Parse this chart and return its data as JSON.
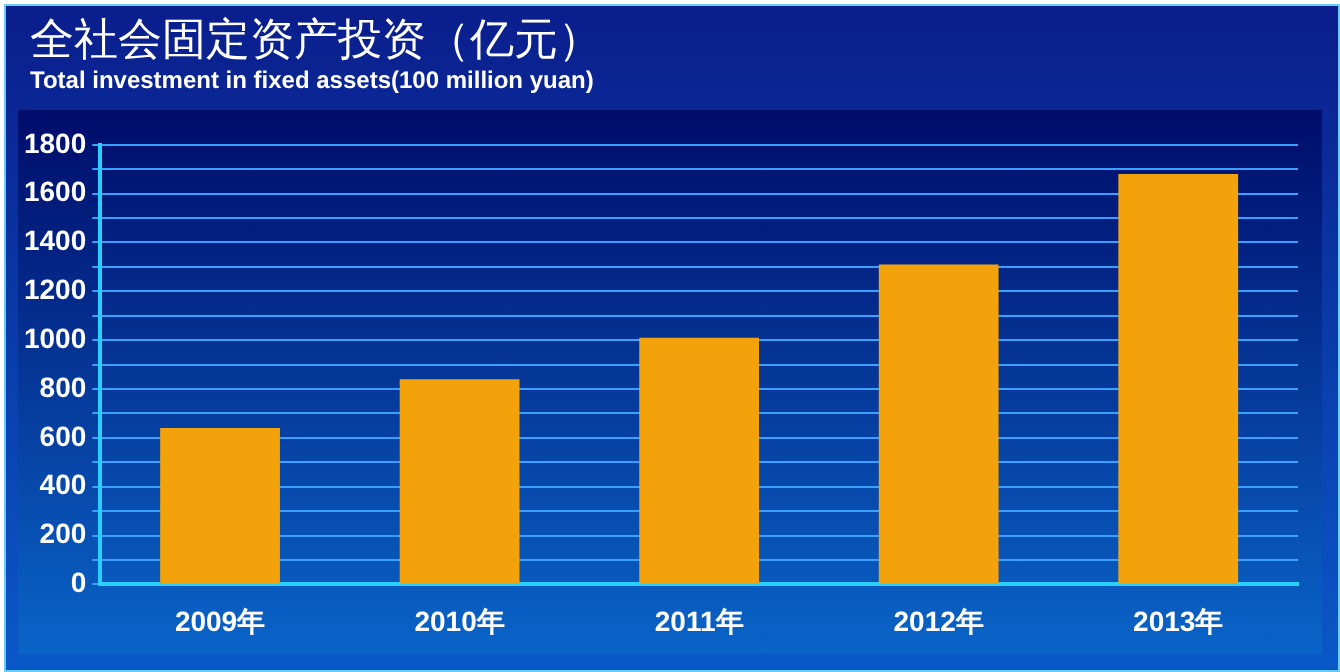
{
  "chart_data": {
    "type": "bar",
    "title": "全社会固定资产投资（亿元）",
    "subtitle": "Total investment in fixed assets(100 million yuan)",
    "categories": [
      "2009年",
      "2010年",
      "2011年",
      "2012年",
      "2013年"
    ],
    "values": [
      640,
      840,
      1010,
      1310,
      1680
    ],
    "color": "#f3a20c",
    "ylim": [
      0,
      1800
    ],
    "yticks": [
      0,
      {
        "value": 100,
        "label": null
      },
      200,
      {
        "value": 300,
        "label": null
      },
      400,
      {
        "value": 500,
        "label": null
      },
      600,
      {
        "value": 700,
        "label": null
      },
      800,
      {
        "value": 900,
        "label": null
      },
      1000,
      {
        "value": 1100,
        "label": null
      },
      1200,
      {
        "value": 1300,
        "label": null
      },
      1400,
      {
        "value": 1500,
        "label": null
      },
      1600,
      {
        "value": 1700,
        "label": null
      },
      1800
    ],
    "grid": "y"
  }
}
